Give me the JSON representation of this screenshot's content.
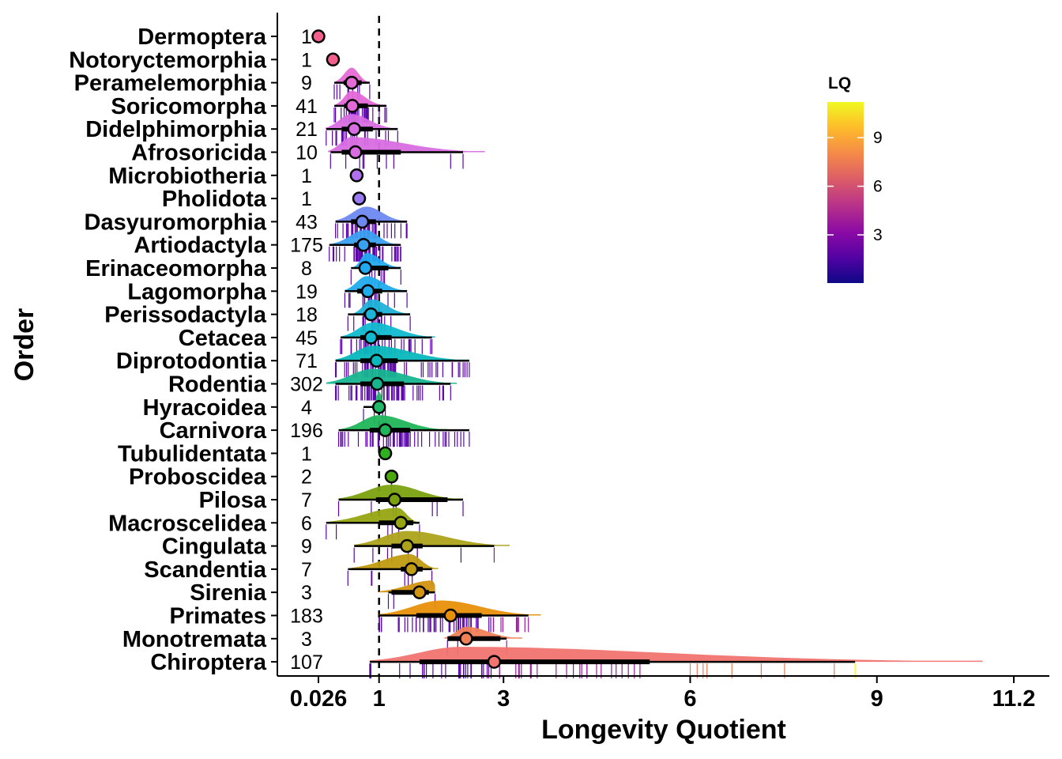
{
  "chart_data": {
    "type": "raincloud",
    "title": "",
    "xlabel": "Longevity Quotient",
    "ylabel": "Order",
    "xlim": [
      0,
      11.8
    ],
    "x_ticks": [
      {
        "value": 0.026,
        "label": "0.026"
      },
      {
        "value": 1,
        "label": "1"
      },
      {
        "value": 3,
        "label": "3"
      },
      {
        "value": 6,
        "label": "6"
      },
      {
        "value": 9,
        "label": "9"
      },
      {
        "value": 11.2,
        "label": "11.2"
      }
    ],
    "reference_line": {
      "value": 1,
      "style": "dashed"
    },
    "legend": {
      "title": "LQ",
      "placement": "right",
      "range": [
        0.026,
        11.2
      ],
      "ticks": [
        3,
        6,
        9
      ],
      "colormap": [
        "#0d0887",
        "#5302a3",
        "#8b0aa5",
        "#b83289",
        "#db5c68",
        "#f48849",
        "#febc2a",
        "#f0f921"
      ]
    },
    "series": [
      {
        "order": "Dermoptera",
        "n": 1,
        "mean": 0.026,
        "color": "#f0608a",
        "min": 0.026,
        "q1": 0.026,
        "q3": 0.026,
        "max": 0.026,
        "density_max_height": 0
      },
      {
        "order": "Notoryctemorphia",
        "n": 1,
        "mean": 0.26,
        "color": "#f0608a",
        "min": 0.26,
        "q1": 0.26,
        "q3": 0.26,
        "max": 0.26
      },
      {
        "order": "Peramelemorphia",
        "n": 9,
        "mean": 0.56,
        "color": "#e76bd4",
        "min": 0.28,
        "q1": 0.43,
        "q3": 0.72,
        "max": 0.85,
        "density_peak": 0.56,
        "density_span": [
          0.3,
          0.85
        ]
      },
      {
        "order": "Soricomorpha",
        "n": 41,
        "mean": 0.57,
        "color": "#e468d8",
        "min": 0.28,
        "q1": 0.44,
        "q3": 0.82,
        "max": 1.12,
        "density_peak": 0.56,
        "density_span": [
          0.3,
          1.1
        ]
      },
      {
        "order": "Didelphimorphia",
        "n": 21,
        "mean": 0.6,
        "color": "#d86de2",
        "min": 0.15,
        "q1": 0.4,
        "q3": 0.9,
        "max": 1.3,
        "density_peak": 0.55,
        "density_span": [
          0.14,
          1.3
        ]
      },
      {
        "order": "Afrosoricida",
        "n": 10,
        "mean": 0.62,
        "color": "#d86de2",
        "min": 0.22,
        "q1": 0.4,
        "q3": 1.35,
        "max": 2.35,
        "density_peak": 0.55,
        "density_span": [
          0.18,
          2.7
        ]
      },
      {
        "order": "Microbiotheria",
        "n": 1,
        "mean": 0.64,
        "color": "#b070f0",
        "min": 0.64,
        "q1": 0.64,
        "q3": 0.64,
        "max": 0.64
      },
      {
        "order": "Pholidota",
        "n": 1,
        "mean": 0.68,
        "color": "#9a79f2",
        "min": 0.68,
        "q1": 0.68,
        "q3": 0.68,
        "max": 0.68
      },
      {
        "order": "Dasyuromorphia",
        "n": 43,
        "mean": 0.73,
        "color": "#6e88f0",
        "min": 0.3,
        "q1": 0.55,
        "q3": 0.95,
        "max": 1.45,
        "density_peak": 0.8,
        "density_span": [
          0.3,
          1.45
        ]
      },
      {
        "order": "Artiodactyla",
        "n": 175,
        "mean": 0.75,
        "color": "#3aa0f0",
        "min": 0.2,
        "q1": 0.6,
        "q3": 0.95,
        "max": 1.35,
        "density_peak": 0.78,
        "density_span": [
          0.25,
          1.3
        ]
      },
      {
        "order": "Erinaceomorpha",
        "n": 8,
        "mean": 0.78,
        "color": "#21aaf0",
        "min": 0.55,
        "q1": 0.7,
        "q3": 1.15,
        "max": 1.35,
        "density_peak": 0.8,
        "density_span": [
          0.6,
          1.35
        ]
      },
      {
        "order": "Lagomorpha",
        "n": 19,
        "mean": 0.82,
        "color": "#20acec",
        "min": 0.45,
        "q1": 0.65,
        "q3": 1.05,
        "max": 1.45,
        "density_peak": 0.8,
        "density_span": [
          0.45,
          1.45
        ]
      },
      {
        "order": "Perissodactyla",
        "n": 18,
        "mean": 0.87,
        "color": "#1cb3d8",
        "min": 0.5,
        "q1": 0.75,
        "q3": 1.05,
        "max": 1.5,
        "density_peak": 0.88,
        "density_span": [
          0.6,
          1.5
        ]
      },
      {
        "order": "Cetacea",
        "n": 45,
        "mean": 0.87,
        "color": "#10bad0",
        "min": 0.38,
        "q1": 0.7,
        "q3": 1.2,
        "max": 1.85,
        "density_peak": 0.9,
        "density_span": [
          0.4,
          1.9
        ]
      },
      {
        "order": "Diprotodontia",
        "n": 71,
        "mean": 0.96,
        "color": "#08b8bc",
        "min": 0.3,
        "q1": 0.7,
        "q3": 1.3,
        "max": 2.45,
        "density_peak": 0.9,
        "density_span": [
          0.3,
          2.45
        ]
      },
      {
        "order": "Rodentia",
        "n": 302,
        "mean": 0.97,
        "color": "#16b590",
        "min": 0.3,
        "q1": 0.7,
        "q3": 1.4,
        "max": 2.15,
        "density_peak": 0.9,
        "density_span": [
          0.15,
          2.25
        ]
      },
      {
        "order": "Hyracoidea",
        "n": 4,
        "mean": 1.0,
        "color": "#22b86a",
        "min": 0.75,
        "q1": 0.9,
        "q3": 1.05,
        "max": 1.1,
        "density_peak": 1.0,
        "density_span": [
          0.95,
          1.05
        ]
      },
      {
        "order": "Carnivora",
        "n": 196,
        "mean": 1.1,
        "color": "#20b55a",
        "min": 0.35,
        "q1": 0.85,
        "q3": 1.5,
        "max": 2.45,
        "density_peak": 1.0,
        "density_span": [
          0.4,
          2.1
        ]
      },
      {
        "order": "Tubulidentata",
        "n": 1,
        "mean": 1.1,
        "color": "#30b020",
        "min": 1.1,
        "q1": 1.1,
        "q3": 1.1,
        "max": 1.1
      },
      {
        "order": "Proboscidea",
        "n": 2,
        "mean": 1.2,
        "color": "#4aa80e",
        "min": 1.2,
        "q1": 1.2,
        "q3": 1.2,
        "max": 1.2
      },
      {
        "order": "Pilosa",
        "n": 7,
        "mean": 1.25,
        "color": "#7ba20e",
        "min": 0.35,
        "q1": 0.95,
        "q3": 2.1,
        "max": 2.35,
        "density_peak": 1.2,
        "density_span": [
          0.35,
          2.35
        ]
      },
      {
        "order": "Macroscelidea",
        "n": 6,
        "mean": 1.35,
        "color": "#96a410",
        "min": 0.15,
        "q1": 1.0,
        "q3": 1.55,
        "max": 1.65,
        "density_peak": 1.3,
        "density_span": [
          0.2,
          1.65
        ]
      },
      {
        "order": "Cingulata",
        "n": 9,
        "mean": 1.45,
        "color": "#aca31a",
        "min": 0.6,
        "q1": 1.2,
        "q3": 1.7,
        "max": 2.85,
        "density_peak": 1.45,
        "density_span": [
          0.6,
          3.1
        ]
      },
      {
        "order": "Scandentia",
        "n": 7,
        "mean": 1.52,
        "color": "#c09c10",
        "min": 0.5,
        "q1": 1.35,
        "q3": 1.7,
        "max": 1.85,
        "density_peak": 1.5,
        "density_span": [
          0.55,
          1.95
        ]
      },
      {
        "order": "Sirenia",
        "n": 3,
        "mean": 1.65,
        "color": "#d19410",
        "min": 1.15,
        "q1": 1.2,
        "q3": 1.8,
        "max": 1.9,
        "density_peak": 1.85,
        "density_span": [
          1.0,
          1.9
        ]
      },
      {
        "order": "Primates",
        "n": 183,
        "mean": 2.15,
        "color": "#e8900a",
        "min": 1.0,
        "q1": 1.6,
        "q3": 2.65,
        "max": 3.4,
        "density_peak": 2.0,
        "density_span": [
          1.0,
          3.6
        ]
      },
      {
        "order": "Monotremata",
        "n": 3,
        "mean": 2.4,
        "color": "#f08057",
        "min": 2.1,
        "q1": 2.1,
        "q3": 2.95,
        "max": 3.05,
        "density_peak": 2.4,
        "density_span": [
          2.05,
          3.3
        ]
      },
      {
        "order": "Chiroptera",
        "n": 107,
        "mean": 2.85,
        "color": "#f27470",
        "min": 0.85,
        "q1": 1.65,
        "q3": 5.35,
        "max": 8.65,
        "density_peak": 2.3,
        "density_span": [
          0.85,
          10.7
        ]
      }
    ]
  }
}
